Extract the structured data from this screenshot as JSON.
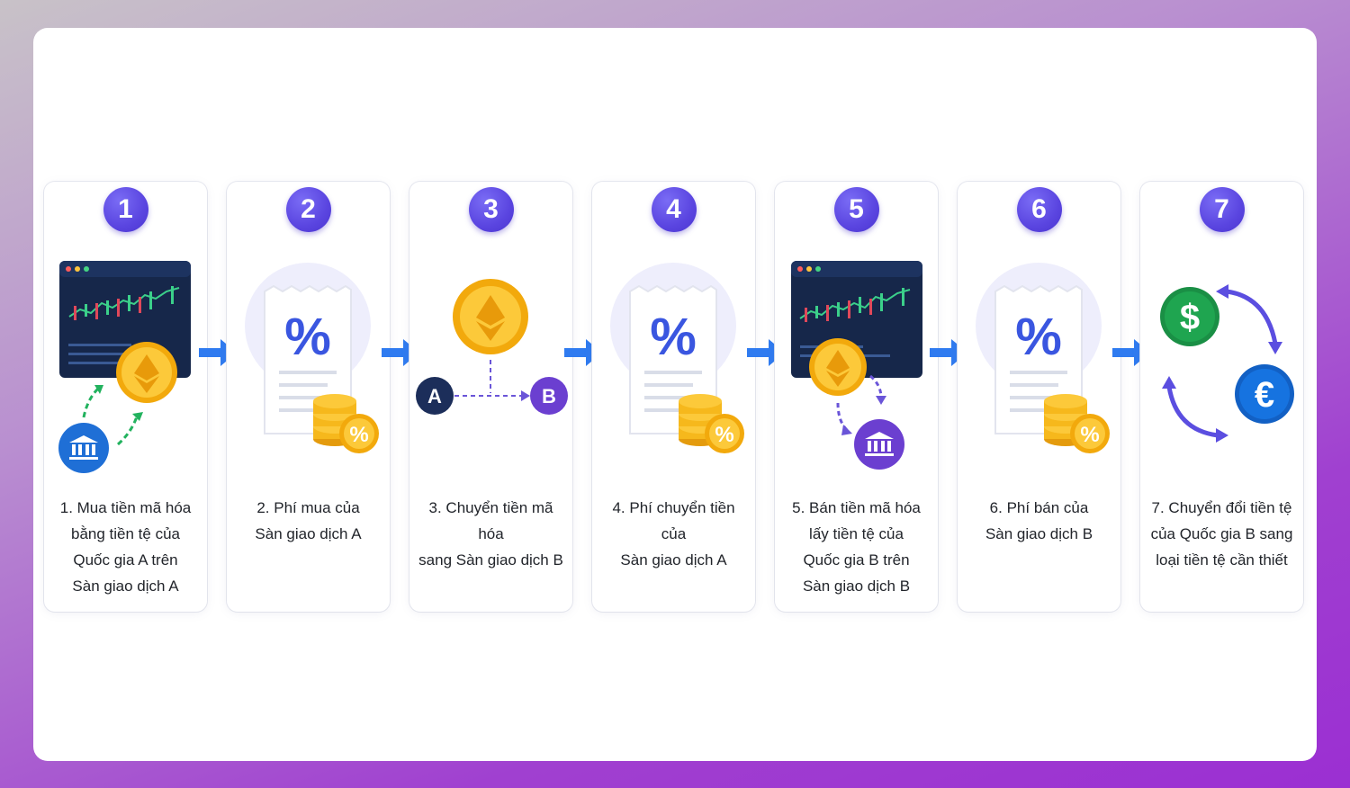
{
  "steps": [
    {
      "number": "1",
      "caption": "1. Mua tiền mã hóa\nbằng tiền tệ của\nQuốc gia A trên\nSàn giao dịch A"
    },
    {
      "number": "2",
      "caption": "2. Phí mua của\nSàn giao dịch A"
    },
    {
      "number": "3",
      "caption": "3. Chuyển tiền mã hóa\nsang Sàn giao dịch B",
      "node_a": "A",
      "node_b": "B"
    },
    {
      "number": "4",
      "caption": "4. Phí chuyển tiền của\nSàn giao dịch A"
    },
    {
      "number": "5",
      "caption": "5. Bán tiền mã hóa\nlấy tiền tệ của\nQuốc gia B trên\nSàn giao dịch B"
    },
    {
      "number": "6",
      "caption": "6. Phí bán của\nSàn giao dịch B"
    },
    {
      "number": "7",
      "caption": "7. Chuyển đổi tiền tệ\ncủa Quốc gia B sang\nloại tiền tệ cần thiết"
    }
  ],
  "icons": {
    "step1": [
      "exchange-chart-window-icon",
      "ethereum-coin-icon",
      "bank-icon"
    ],
    "step2": [
      "fee-receipt-percent-icon",
      "coin-stack-percent-icon"
    ],
    "step3": [
      "ethereum-coin-icon",
      "transfer-dotted-arrow-icon"
    ],
    "step4": [
      "fee-receipt-percent-icon",
      "coin-stack-percent-icon"
    ],
    "step5": [
      "exchange-chart-window-icon",
      "ethereum-coin-icon",
      "bank-icon"
    ],
    "step6": [
      "fee-receipt-percent-icon",
      "coin-stack-percent-icon"
    ],
    "step7": [
      "dollar-coin-icon",
      "euro-coin-icon",
      "exchange-cycle-arrows-icon"
    ]
  },
  "percent_symbol": "%",
  "dollar_symbol": "$",
  "euro_symbol": "€",
  "colors": {
    "step_badge": "#5a45e0",
    "flow_arrow": "#2f7bf0",
    "coin_gold": "#f6b81c",
    "bank_blue": "#1f6fd6",
    "bank_purple": "#6b3fd0",
    "dollar_green": "#1fa550",
    "euro_blue": "#1673e0"
  }
}
